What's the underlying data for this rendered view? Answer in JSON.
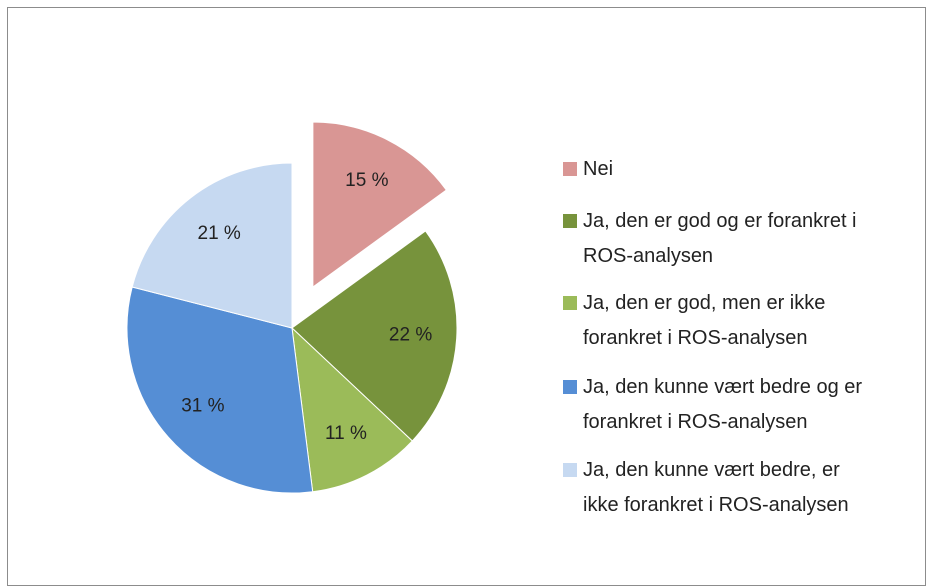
{
  "chart_data": {
    "type": "pie",
    "categories": [
      "Nei",
      "Ja, den er god og er forankret i ROS-analysen",
      "Ja, den er god, men er ikke forankret i ROS-analysen",
      "Ja, den kunne vært bedre og er forankret i ROS-analysen",
      "Ja, den kunne vært bedre, er ikke forankret i ROS-analysen"
    ],
    "values": [
      15,
      22,
      11,
      31,
      21
    ],
    "value_labels": [
      "15 %",
      "22 %",
      "11 %",
      "31 %",
      "21 %"
    ],
    "colors": [
      "#d99694",
      "#77933c",
      "#9bbb59",
      "#558ed5",
      "#c6d9f1"
    ],
    "exploded": [
      true,
      false,
      false,
      false,
      false
    ],
    "legend": "right"
  }
}
